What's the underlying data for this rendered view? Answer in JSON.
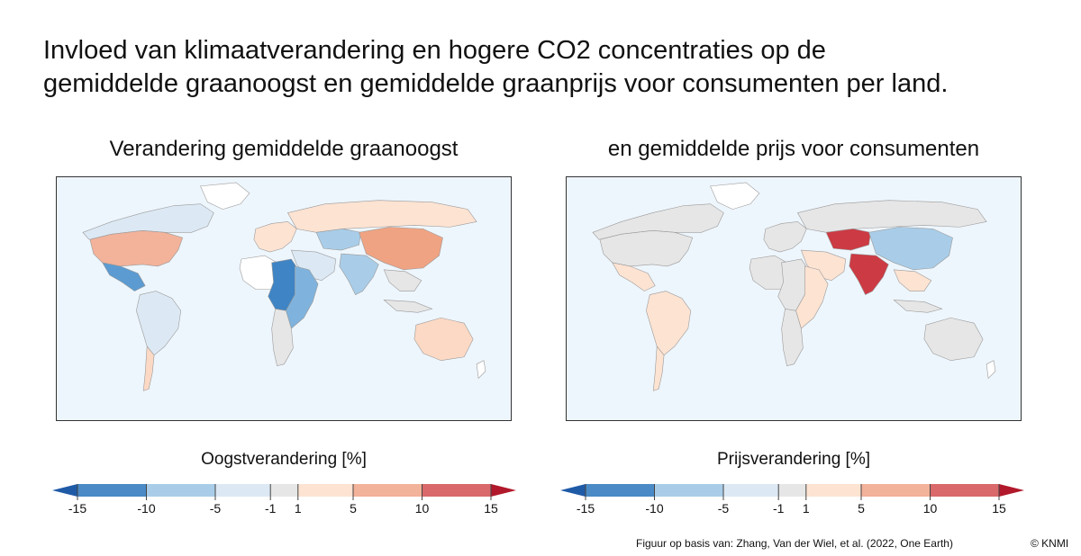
{
  "title": {
    "line1": "Invloed van klimaatverandering en hogere CO2 concentraties op de",
    "line2": "gemiddelde graanoogst en gemiddelde graanprijs voor consumenten per land."
  },
  "panels": [
    {
      "title": "Verandering gemiddelde graanoogst",
      "legend_title": "Oogstverandering [%]",
      "regions": {
        "north_america_usa": "#f3b29a",
        "canada": "#dce9f4",
        "mexico": "#5b9bd1",
        "south_america": "#dce9f4",
        "argentina": "#fcd9c4",
        "europe": "#fde3d2",
        "russia": "#fde3d2",
        "central_asia": "#a9cde8",
        "china": "#f0a382",
        "india": "#a9cde8",
        "middle_east": "#dce9f4",
        "west_africa": "#ffffff",
        "central_africa": "#3f84c4",
        "east_africa": "#7fb3dd",
        "southern_africa": "#e6e6e6",
        "southeast_asia": "#e6e6e6",
        "australia": "#fcd9c4"
      }
    },
    {
      "title": "en gemiddelde prijs voor consumenten",
      "legend_title": "Prijsverandering [%]",
      "regions": {
        "north_america_usa": "#e6e6e6",
        "canada": "#e6e6e6",
        "mexico": "#fde3d2",
        "south_america": "#fde3d2",
        "argentina": "#fde3d2",
        "europe": "#e6e6e6",
        "russia": "#e6e6e6",
        "central_asia": "#cc3a43",
        "china": "#a9cde8",
        "india": "#cc3a43",
        "middle_east": "#fde3d2",
        "west_africa": "#e6e6e6",
        "central_africa": "#e6e6e6",
        "east_africa": "#fde3d2",
        "southern_africa": "#e6e6e6",
        "southeast_asia": "#fde3d2",
        "australia": "#e6e6e6"
      }
    }
  ],
  "colorbar": {
    "ticks": [
      "-15",
      "-10",
      "-5",
      "-1",
      "1",
      "5",
      "10",
      "15"
    ],
    "tick_values": [
      -15,
      -10,
      -5,
      -1,
      1,
      5,
      10,
      15
    ],
    "bin_colors": [
      "#4a8ac6",
      "#a9cde8",
      "#dce9f4",
      "#e6e6e6",
      "#fde3d2",
      "#f3b29a",
      "#d9696a"
    ],
    "under_color": "#1f5aa6",
    "over_color": "#b2182b"
  },
  "source": "Figuur op basis van: Zhang, Van der Wiel, et al. (2022, One Earth)",
  "copyright": "© KNMI"
}
